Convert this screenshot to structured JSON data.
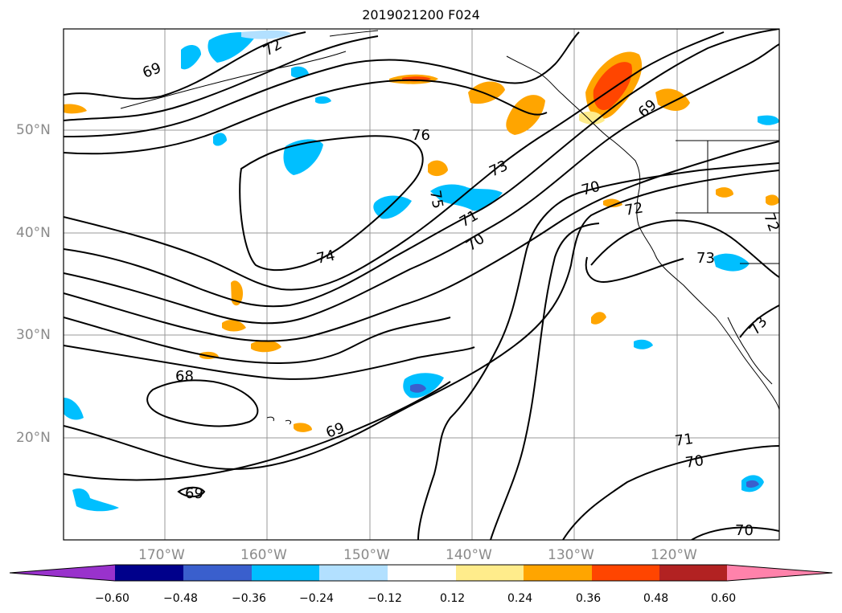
{
  "title": "2019021200 F024",
  "lat_labels": [
    "50°N",
    "40°N",
    "30°N",
    "20°N"
  ],
  "lon_labels": [
    "170°W",
    "160°W",
    "150°W",
    "140°W",
    "130°W",
    "120°W"
  ],
  "colorbar": {
    "ticks": [
      "−0.60",
      "−0.48",
      "−0.36",
      "−0.24",
      "−0.12",
      "0.12",
      "0.24",
      "0.36",
      "0.48",
      "0.60"
    ],
    "colors": [
      "#9932CC",
      "#00008B",
      "#3A5FCD",
      "#00BFFF",
      "#B2E0FF",
      "#FFFFFF",
      "#FFEC8B",
      "#FFA500",
      "#FF4500",
      "#B22222",
      "#FF82AB"
    ]
  },
  "contour_labels": [
    "69",
    "72",
    "76",
    "73",
    "75",
    "71",
    "70",
    "74",
    "72",
    "70",
    "73",
    "69",
    "68",
    "69",
    "69",
    "71",
    "70",
    "70",
    "73",
    "72"
  ]
}
